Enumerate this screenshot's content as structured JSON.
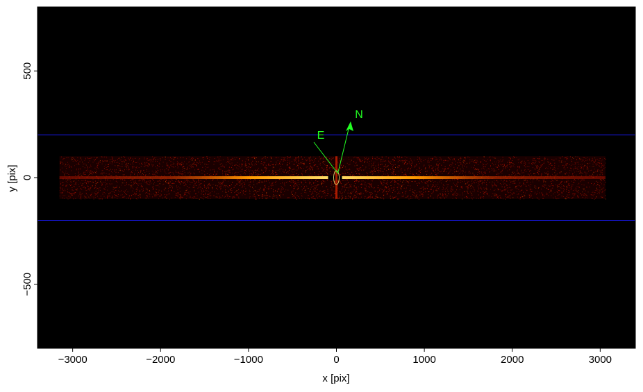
{
  "chart_data": {
    "type": "image",
    "x_label": "x [pix]",
    "y_label": "y [pix]",
    "xlim": [
      -3400,
      3400
    ],
    "ylim": [
      -800,
      800
    ],
    "xticks": [
      {
        "value": -3000,
        "label": "−3000"
      },
      {
        "value": -2000,
        "label": "−2000"
      },
      {
        "value": -1000,
        "label": "−1000"
      },
      0,
      1000,
      2000,
      3000
    ],
    "yticks": [
      {
        "value": -500,
        "label": "−500"
      },
      0,
      500
    ],
    "spectrum_region": {
      "x": [
        -3150,
        3060
      ],
      "y": [
        -100,
        100
      ]
    },
    "extraction_region": {
      "color": "#1a1aff",
      "y": [
        -200,
        200
      ]
    },
    "annotations": [
      "E",
      "N"
    ]
  }
}
